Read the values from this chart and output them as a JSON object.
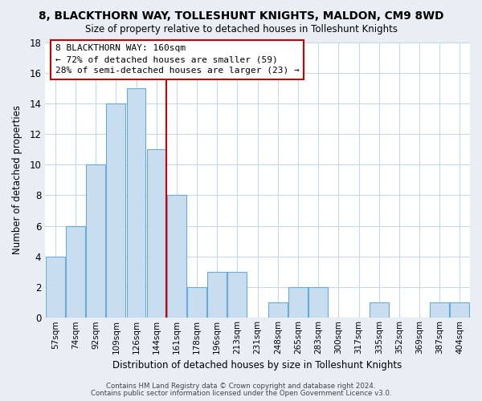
{
  "title": "8, BLACKTHORN WAY, TOLLESHUNT KNIGHTS, MALDON, CM9 8WD",
  "subtitle": "Size of property relative to detached houses in Tolleshunt Knights",
  "xlabel": "Distribution of detached houses by size in Tolleshunt Knights",
  "ylabel": "Number of detached properties",
  "bin_labels": [
    "57sqm",
    "74sqm",
    "92sqm",
    "109sqm",
    "126sqm",
    "144sqm",
    "161sqm",
    "178sqm",
    "196sqm",
    "213sqm",
    "231sqm",
    "248sqm",
    "265sqm",
    "283sqm",
    "300sqm",
    "317sqm",
    "335sqm",
    "352sqm",
    "369sqm",
    "387sqm",
    "404sqm"
  ],
  "bar_values": [
    4,
    6,
    10,
    14,
    15,
    11,
    8,
    2,
    3,
    3,
    0,
    1,
    2,
    2,
    0,
    0,
    1,
    0,
    0,
    1,
    1
  ],
  "bar_color": "#c8ddef",
  "bar_edge_color": "#6aaad4",
  "vline_x_index": 6,
  "vline_color": "#cc0000",
  "ylim": [
    0,
    18
  ],
  "yticks": [
    0,
    2,
    4,
    6,
    8,
    10,
    12,
    14,
    16,
    18
  ],
  "annotation_title": "8 BLACKTHORN WAY: 160sqm",
  "annotation_line1": "← 72% of detached houses are smaller (59)",
  "annotation_line2": "28% of semi-detached houses are larger (23) →",
  "footer1": "Contains HM Land Registry data © Crown copyright and database right 2024.",
  "footer2": "Contains public sector information licensed under the Open Government Licence v3.0.",
  "bg_color": "#e8eef4",
  "plot_bg_color": "#ffffff",
  "grid_color": "#c8d8e8"
}
